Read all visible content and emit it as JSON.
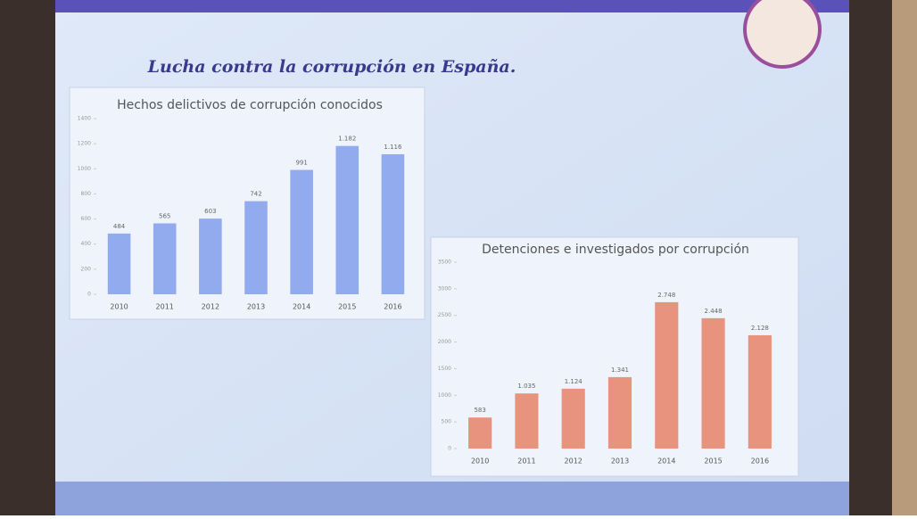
{
  "title": "Lucha contra la corrupción en España.",
  "chart_data": [
    {
      "type": "bar",
      "title": "Hechos delictivos de corrupción conocidos",
      "categories": [
        "2010",
        "2011",
        "2012",
        "2013",
        "2014",
        "2015",
        "2016"
      ],
      "values": [
        484,
        565,
        603,
        742,
        991,
        1182,
        1116
      ],
      "value_labels": [
        "484",
        "565",
        "603",
        "742",
        "991",
        "1.182",
        "1.116"
      ],
      "color": "#92aaee",
      "ylim": [
        0,
        1400
      ],
      "yticks": [
        0,
        200,
        400,
        600,
        800,
        1000,
        1200,
        1400
      ]
    },
    {
      "type": "bar",
      "title": "Detenciones e investigados por corrupción",
      "categories": [
        "2010",
        "2011",
        "2012",
        "2013",
        "2014",
        "2015",
        "2016"
      ],
      "values": [
        583,
        1035,
        1124,
        1341,
        2748,
        2448,
        2128
      ],
      "value_labels": [
        "583",
        "1.035",
        "1.124",
        "1.341",
        "2.748",
        "2.448",
        "2.128"
      ],
      "color": "#e8937e",
      "ylim": [
        0,
        3500
      ],
      "yticks": [
        0,
        500,
        1000,
        1500,
        2000,
        2500,
        3000,
        3500
      ]
    }
  ]
}
